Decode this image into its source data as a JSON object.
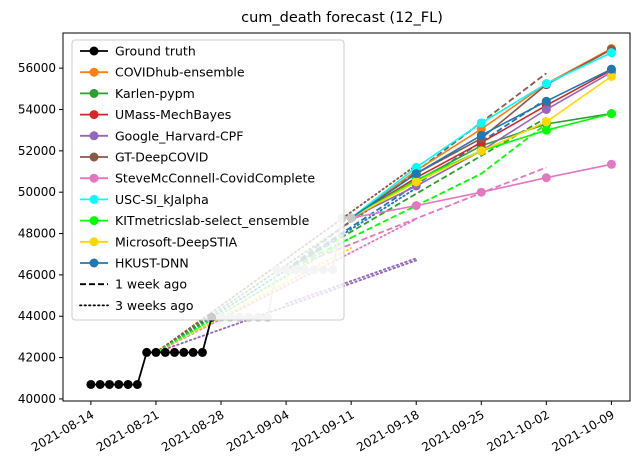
{
  "chart_data": {
    "type": "line",
    "title": "cum_death forecast (12_FL)",
    "xlabel": "",
    "ylabel": "",
    "x_ticks": [
      "2021-08-14",
      "2021-08-21",
      "2021-08-28",
      "2021-09-04",
      "2021-09-11",
      "2021-09-18",
      "2021-09-25",
      "2021-10-02",
      "2021-10-09"
    ],
    "xlim": [
      "2021-08-11",
      "2021-10-11"
    ],
    "y_ticks": [
      40000,
      42000,
      44000,
      46000,
      48000,
      50000,
      52000,
      54000,
      56000
    ],
    "ylim": [
      39900,
      57700
    ],
    "grid": false,
    "legend_position": "upper left",
    "ground_truth": {
      "name": "Ground truth",
      "color": "#000000",
      "dates": [
        "2021-08-14",
        "2021-08-15",
        "2021-08-16",
        "2021-08-17",
        "2021-08-18",
        "2021-08-19",
        "2021-08-20",
        "2021-08-21",
        "2021-08-22",
        "2021-08-23",
        "2021-08-24",
        "2021-08-25",
        "2021-08-26",
        "2021-08-27",
        "2021-08-28",
        "2021-08-29",
        "2021-08-30",
        "2021-08-31",
        "2021-09-01",
        "2021-09-02",
        "2021-09-03",
        "2021-09-04",
        "2021-09-05",
        "2021-09-06",
        "2021-09-07",
        "2021-09-08",
        "2021-09-09",
        "2021-09-10",
        "2021-09-11"
      ],
      "values": [
        40700,
        40700,
        40700,
        40700,
        40700,
        40700,
        42250,
        42250,
        42250,
        42250,
        42250,
        42250,
        42250,
        43950,
        43950,
        43950,
        43950,
        43950,
        43950,
        43950,
        46250,
        46250,
        46250,
        46250,
        46250,
        46250,
        46250,
        48750,
        48750
      ],
      "black_count": 14
    },
    "forecasts": [
      {
        "name": "COVIDhub-ensemble",
        "color": "#ff7f0e",
        "dates": [
          "2021-09-11",
          "2021-09-18",
          "2021-09-25",
          "2021-10-02",
          "2021-10-09"
        ],
        "values": [
          48750,
          51050,
          53050,
          55250,
          56950
        ]
      },
      {
        "name": "Karlen-pypm",
        "color": "#2ca02c",
        "dates": [
          "2021-09-11",
          "2021-09-18",
          "2021-09-25",
          "2021-10-02",
          "2021-10-09"
        ],
        "values": [
          48750,
          50550,
          52250,
          53300,
          53800
        ]
      },
      {
        "name": "UMass-MechBayes",
        "color": "#d62728",
        "dates": [
          "2021-09-11",
          "2021-09-18",
          "2021-09-25",
          "2021-10-02",
          "2021-10-09"
        ],
        "values": [
          48750,
          50700,
          52400,
          54200,
          55900
        ]
      },
      {
        "name": "Google_Harvard-CPF",
        "color": "#9467bd",
        "dates": [
          "2021-09-11",
          "2021-09-18",
          "2021-09-25",
          "2021-10-02",
          "2021-10-09"
        ],
        "values": [
          48750,
          50300,
          52000,
          54000,
          55800
        ]
      },
      {
        "name": "GT-DeepCOVID",
        "color": "#8c564b",
        "dates": [
          "2021-09-11",
          "2021-09-18",
          "2021-09-25",
          "2021-10-02",
          "2021-10-09"
        ],
        "values": [
          48750,
          50900,
          52600,
          55200,
          56900
        ]
      },
      {
        "name": "SteveMcConnell-CovidComplete",
        "color": "#e377c2",
        "dates": [
          "2021-09-11",
          "2021-09-18",
          "2021-09-25",
          "2021-10-02",
          "2021-10-09"
        ],
        "values": [
          48750,
          49350,
          50000,
          50700,
          51350
        ]
      },
      {
        "name": "USC-SI_kJalpha",
        "color": "#00ffff",
        "dates": [
          "2021-09-11",
          "2021-09-18",
          "2021-09-25",
          "2021-10-02",
          "2021-10-09"
        ],
        "values": [
          48750,
          51200,
          53350,
          55250,
          56750
        ]
      },
      {
        "name": "KITmetricslab-select_ensemble",
        "color": "#00ff00",
        "dates": [
          "2021-09-11",
          "2021-09-18",
          "2021-09-25",
          "2021-10-02",
          "2021-10-09"
        ],
        "values": [
          48750,
          50600,
          52000,
          53000,
          53800
        ]
      },
      {
        "name": "Microsoft-DeepSTIA",
        "color": "#ffd700",
        "dates": [
          "2021-09-11",
          "2021-09-18",
          "2021-09-25",
          "2021-10-02",
          "2021-10-09"
        ],
        "values": [
          48750,
          50500,
          52000,
          53400,
          55600
        ]
      },
      {
        "name": "HKUST-DNN",
        "color": "#1f77b4",
        "dates": [
          "2021-09-11",
          "2021-09-18",
          "2021-09-25",
          "2021-10-02",
          "2021-10-09"
        ],
        "values": [
          48750,
          50900,
          52750,
          54400,
          55950
        ]
      }
    ],
    "one_week_ago": [
      {
        "color": "#8c564b",
        "dates": [
          "2021-09-04",
          "2021-10-02"
        ],
        "values": [
          46250,
          55750
        ]
      },
      {
        "color": "#2ca02c",
        "dates": [
          "2021-09-04",
          "2021-10-02"
        ],
        "values": [
          46250,
          53600
        ]
      },
      {
        "color": "#00ff00",
        "dates": [
          "2021-09-04",
          "2021-09-25",
          "2021-10-02"
        ],
        "values": [
          46250,
          50900,
          53300
        ]
      },
      {
        "color": "#e377c2",
        "dates": [
          "2021-09-04",
          "2021-10-02"
        ],
        "values": [
          46250,
          51200
        ]
      },
      {
        "color": "#1f77b4",
        "dates": [
          "2021-09-04",
          "2021-10-02"
        ],
        "values": [
          46250,
          54500
        ]
      }
    ],
    "three_weeks_ago": [
      {
        "color": "#9467bd",
        "dates": [
          "2021-08-21",
          "2021-09-18"
        ],
        "values": [
          42250,
          46700
        ]
      },
      {
        "color": "#e377c2",
        "dates": [
          "2021-08-21",
          "2021-09-18"
        ],
        "values": [
          42250,
          48700
        ]
      },
      {
        "color": "#1f77b4",
        "dates": [
          "2021-08-21",
          "2021-09-18"
        ],
        "values": [
          42250,
          50200
        ]
      },
      {
        "color": "#2ca02c",
        "dates": [
          "2021-08-21",
          "2021-09-18"
        ],
        "values": [
          42250,
          50700
        ]
      },
      {
        "color": "#8c564b",
        "dates": [
          "2021-08-21",
          "2021-09-18"
        ],
        "values": [
          42250,
          51300
        ]
      },
      {
        "color": "#ffd700",
        "dates": [
          "2021-08-21",
          "2021-09-11"
        ],
        "values": [
          42250,
          47300
        ]
      },
      {
        "color": "#9467bd",
        "dates": [
          "2021-09-04",
          "2021-09-18"
        ],
        "values": [
          44600,
          46800
        ]
      },
      {
        "color": "#00ff00",
        "dates": [
          "2021-08-21",
          "2021-09-11"
        ],
        "values": [
          42250,
          47800
        ]
      }
    ],
    "legend": [
      {
        "label": "Ground truth",
        "color": "#000000",
        "style": "marker"
      },
      {
        "label": "COVIDhub-ensemble",
        "color": "#ff7f0e",
        "style": "marker"
      },
      {
        "label": "Karlen-pypm",
        "color": "#2ca02c",
        "style": "marker"
      },
      {
        "label": "UMass-MechBayes",
        "color": "#d62728",
        "style": "marker"
      },
      {
        "label": "Google_Harvard-CPF",
        "color": "#9467bd",
        "style": "marker"
      },
      {
        "label": "GT-DeepCOVID",
        "color": "#8c564b",
        "style": "marker"
      },
      {
        "label": "SteveMcConnell-CovidComplete",
        "color": "#e377c2",
        "style": "marker"
      },
      {
        "label": "USC-SI_kJalpha",
        "color": "#00ffff",
        "style": "marker"
      },
      {
        "label": "KITmetricslab-select_ensemble",
        "color": "#00ff00",
        "style": "marker"
      },
      {
        "label": "Microsoft-DeepSTIA",
        "color": "#ffd700",
        "style": "marker"
      },
      {
        "label": "HKUST-DNN",
        "color": "#1f77b4",
        "style": "marker"
      },
      {
        "label": "1 week ago",
        "color": "#000000",
        "style": "dashed"
      },
      {
        "label": "3 weeks ago",
        "color": "#000000",
        "style": "dotted"
      }
    ]
  }
}
